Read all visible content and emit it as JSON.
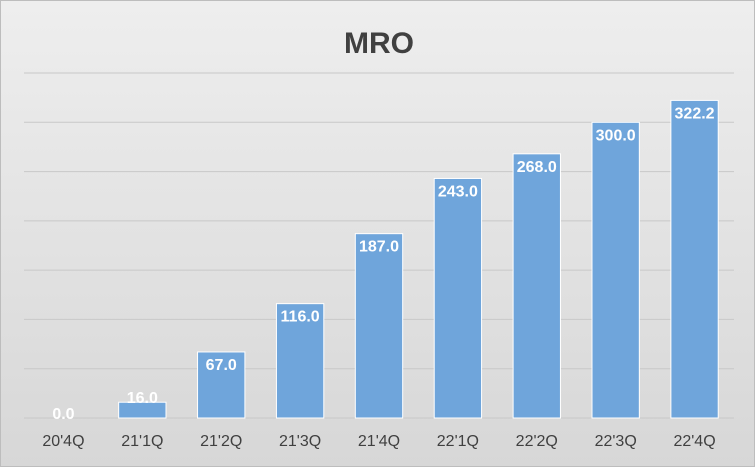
{
  "chart_data": {
    "type": "bar",
    "title": "MRO",
    "categories": [
      "20'4Q",
      "21'1Q",
      "21'2Q",
      "21'3Q",
      "21'4Q",
      "22'1Q",
      "22'2Q",
      "22'3Q",
      "22'4Q"
    ],
    "values": [
      0.0,
      16.0,
      67.0,
      116.0,
      187.0,
      243.0,
      268.0,
      300.0,
      322.2
    ],
    "data_labels": [
      "0.0",
      "16.0",
      "67.0",
      "116.0",
      "187.0",
      "243.0",
      "268.0",
      "300.0",
      "322.2"
    ],
    "xlabel": "",
    "ylabel": "",
    "ylim": [
      0,
      350
    ],
    "y_axis_labels": false,
    "grid": true,
    "legend": "none",
    "colors": {
      "bar": "#6fa5db",
      "bar_border": "#ffffff",
      "grid": "#c8c8c8",
      "title": "#404040",
      "tick_text": "#404040",
      "data_label_text": "#ffffff",
      "background_top": "#eeeeee",
      "background_bottom": "#d7d7d7"
    }
  }
}
